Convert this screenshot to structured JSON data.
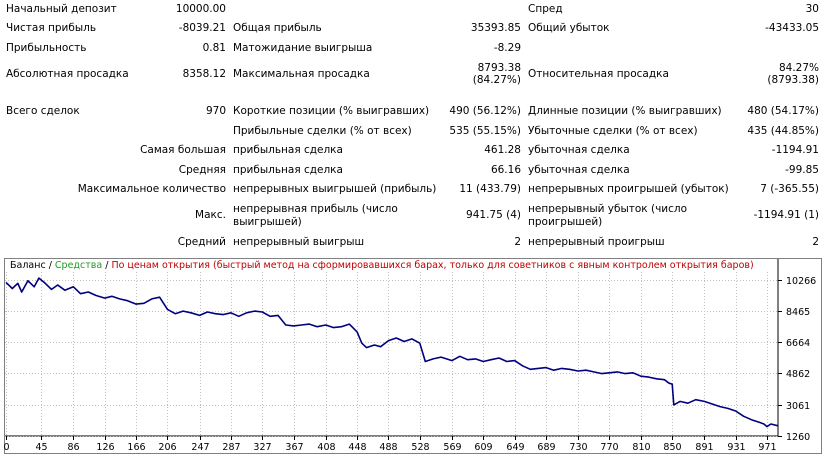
{
  "stats": {
    "initial_deposit": {
      "label": "Начальный депозит",
      "value": "10000.00"
    },
    "spread": {
      "label": "Спред",
      "value": "30"
    },
    "net_profit": {
      "label": "Чистая прибыль",
      "value": "-8039.21"
    },
    "gross_profit": {
      "label": "Общая прибыль",
      "value": "35393.85"
    },
    "gross_loss": {
      "label": "Общий убыток",
      "value": "-43433.05"
    },
    "profit_factor": {
      "label": "Прибыльность",
      "value": "0.81"
    },
    "expected_payoff": {
      "label": "Матожидание выигрыша",
      "value": "-8.29"
    },
    "abs_drawdown": {
      "label": "Абсолютная просадка",
      "value": "8358.12"
    },
    "max_drawdown": {
      "label": "Максимальная просадка",
      "value1": "8793.38",
      "value2": "(84.27%)"
    },
    "rel_drawdown": {
      "label": "Относительная просадка",
      "value1": "84.27%",
      "value2": "(8793.38)"
    },
    "total_trades": {
      "label": "Всего сделок",
      "value": "970"
    },
    "short_positions": {
      "label": "Короткие позиции (% выигравших)",
      "value": "490 (56.12%)"
    },
    "long_positions": {
      "label": "Длинные позиции (% выигравших)",
      "value": "480 (54.17%)"
    },
    "profit_trades": {
      "label": "Прибыльные сделки (% от всех)",
      "value": "535 (55.15%)"
    },
    "loss_trades": {
      "label": "Убыточные сделки (% от всех)",
      "value": "435 (44.85%)"
    },
    "largest": {
      "label": "Самая большая",
      "profit_label": "прибыльная сделка",
      "profit_value": "461.28",
      "loss_label": "убыточная сделка",
      "loss_value": "-1194.91"
    },
    "average": {
      "label": "Средняя",
      "profit_label": "прибыльная сделка",
      "profit_value": "66.16",
      "loss_label": "убыточная сделка",
      "loss_value": "-99.85"
    },
    "max_count": {
      "label": "Максимальное количество",
      "wins_label": "непрерывных выигрышей (прибыль)",
      "wins_value": "11 (433.79)",
      "losses_label": "непрерывных проигрышей (убыток)",
      "losses_value": "7 (-365.55)"
    },
    "max_value": {
      "label": "Макс.",
      "wins_label": "непрерывная прибыль (число выигрышей)",
      "wins_value": "941.75 (4)",
      "losses_label": "непрерывный убыток (число проигрышей)",
      "losses_value": "-1194.91 (1)"
    },
    "avg_series": {
      "label": "Средний",
      "wins_label": "непрерывный выигрыш",
      "wins_value": "2",
      "losses_label": "непрерывный проигрыш",
      "losses_value": "2"
    }
  },
  "chart_legend": {
    "balance": "Баланс",
    "sep1": " / ",
    "equity": "Средства",
    "sep2": " / ",
    "note": "По ценам открытия (быстрый метод на сформировавшихся барах, только для советников с явным контролем открытия баров)"
  },
  "colors": {
    "line": "#000080",
    "grid": "#c0c0c0",
    "frame": "#808080",
    "equity_legend": "#1f9c1f",
    "note_legend": "#c00000"
  },
  "chart_data": {
    "type": "line",
    "title": "",
    "xlabel": "",
    "ylabel": "",
    "grid": true,
    "xlim": [
      0,
      985
    ],
    "ylim": [
      1260,
      10700
    ],
    "x_ticks": [
      0,
      45,
      86,
      126,
      166,
      206,
      247,
      287,
      327,
      367,
      408,
      448,
      488,
      528,
      569,
      609,
      649,
      689,
      730,
      770,
      810,
      850,
      891,
      931,
      971
    ],
    "y_ticks": [
      1260,
      3061,
      4862,
      6664,
      8465,
      10266
    ],
    "series": [
      {
        "name": "Баланс",
        "x": [
          0,
          8,
          15,
          20,
          28,
          36,
          42,
          50,
          58,
          66,
          75,
          86,
          95,
          105,
          115,
          126,
          135,
          145,
          155,
          166,
          176,
          186,
          196,
          206,
          216,
          226,
          236,
          247,
          257,
          267,
          277,
          287,
          297,
          307,
          317,
          327,
          337,
          347,
          357,
          367,
          377,
          387,
          397,
          408,
          418,
          428,
          438,
          448,
          454,
          460,
          470,
          478,
          488,
          498,
          508,
          518,
          528,
          535,
          545,
          555,
          569,
          579,
          589,
          599,
          609,
          619,
          629,
          639,
          649,
          659,
          669,
          679,
          689,
          699,
          709,
          719,
          730,
          740,
          750,
          760,
          770,
          780,
          790,
          800,
          810,
          820,
          830,
          840,
          846,
          850,
          852,
          860,
          870,
          880,
          891,
          901,
          911,
          921,
          931,
          941,
          951,
          961,
          967,
          971,
          976,
          985
        ],
        "y": [
          10100,
          9750,
          10050,
          9550,
          10200,
          9850,
          10350,
          10050,
          9700,
          9950,
          9650,
          9850,
          9450,
          9550,
          9350,
          9200,
          9300,
          9150,
          9050,
          8850,
          8900,
          9150,
          9250,
          8550,
          8300,
          8450,
          8350,
          8200,
          8400,
          8300,
          8250,
          8350,
          8150,
          8350,
          8450,
          8400,
          8150,
          8200,
          7650,
          7600,
          7650,
          7700,
          7550,
          7650,
          7500,
          7550,
          7700,
          7250,
          6600,
          6350,
          6500,
          6400,
          6750,
          6900,
          6700,
          6850,
          6600,
          5550,
          5700,
          5800,
          5600,
          5850,
          5650,
          5700,
          5550,
          5650,
          5750,
          5550,
          5600,
          5300,
          5100,
          5150,
          5200,
          5050,
          5150,
          5100,
          5000,
          5050,
          4950,
          4850,
          4900,
          4950,
          4850,
          4900,
          4700,
          4650,
          4550,
          4500,
          4300,
          4250,
          3050,
          3250,
          3150,
          3350,
          3250,
          3100,
          2950,
          2850,
          2700,
          2400,
          2200,
          2050,
          1950,
          1800,
          1950,
          1850
        ]
      }
    ]
  }
}
